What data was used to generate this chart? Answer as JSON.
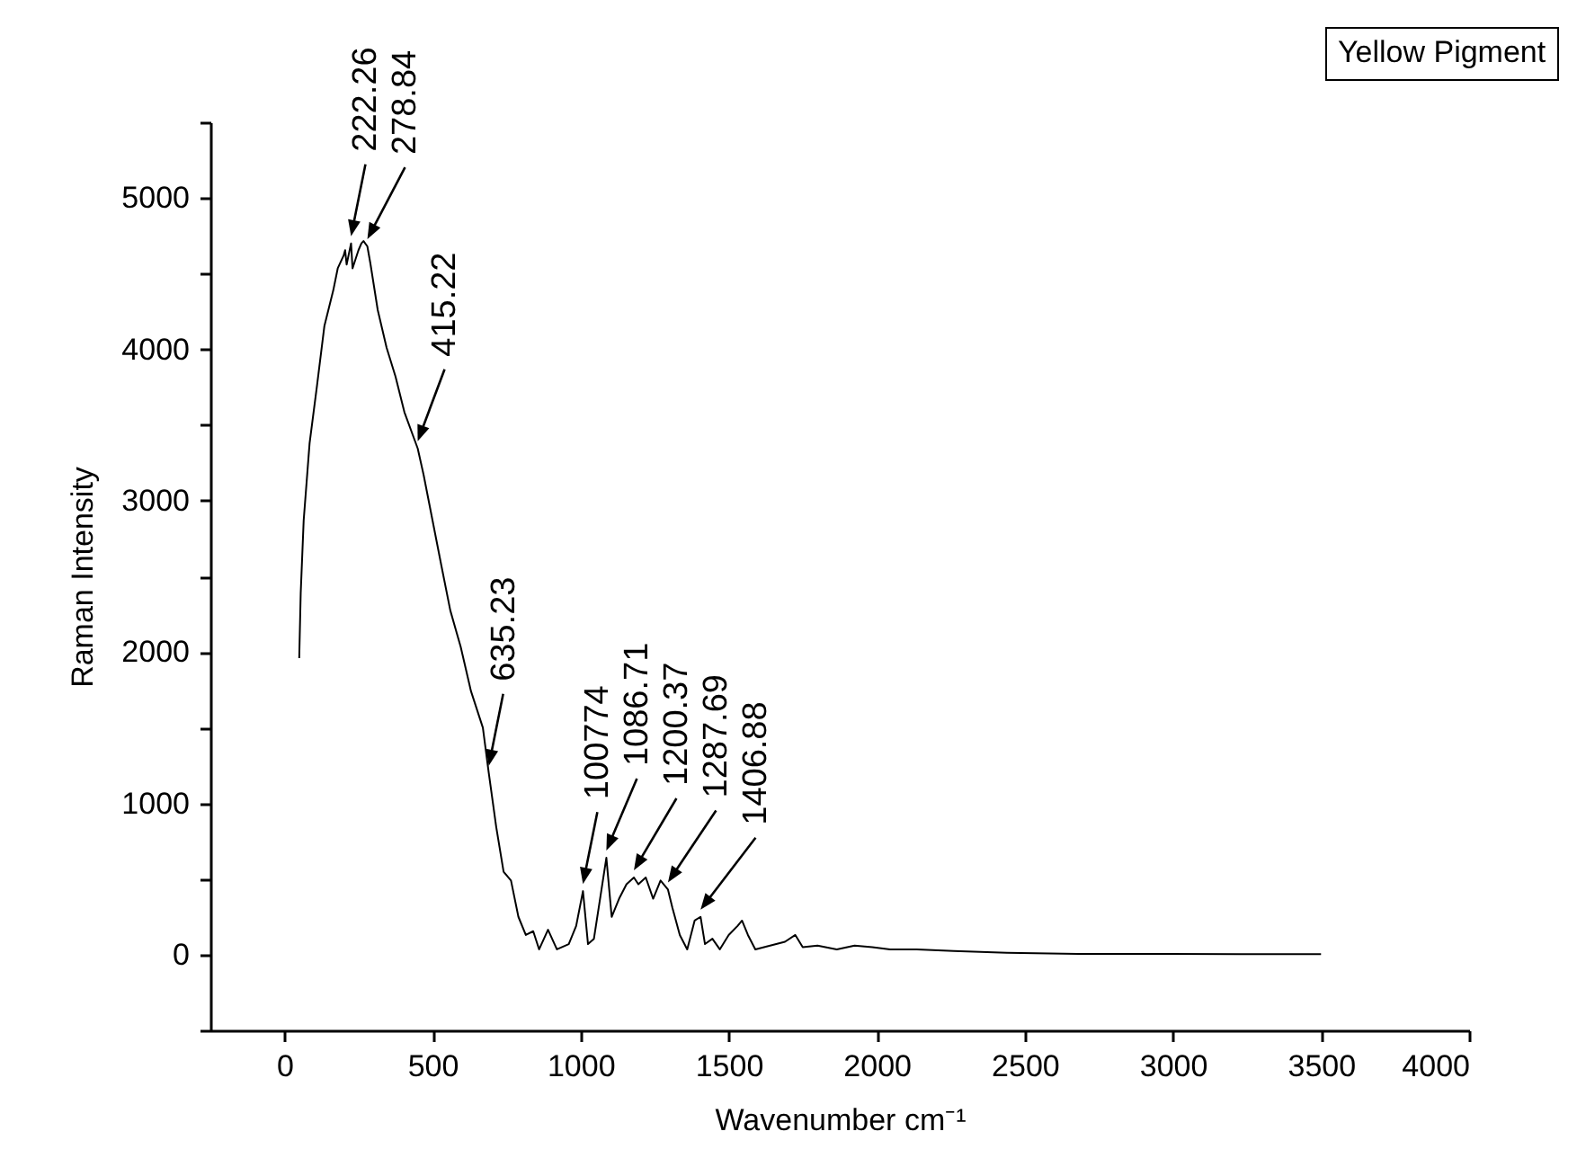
{
  "chart_data": {
    "type": "line",
    "xlabel": "Wavenumber cm⁻¹",
    "ylabel": "Raman Intensity",
    "legend": "top right",
    "xlim": [
      -250,
      4000
    ],
    "xticks": [
      0,
      500,
      1000,
      1500,
      2000,
      2500,
      3000,
      3500,
      4000
    ],
    "ylim": [
      -500,
      5500
    ],
    "yticks": [
      {
        "value": -500,
        "label": null
      },
      0,
      {
        "value": 500,
        "label": null
      },
      1000,
      {
        "value": 1500,
        "label": null
      },
      2000,
      {
        "value": 2500,
        "label": null
      },
      3000,
      {
        "value": 3500,
        "label": null
      },
      4000,
      {
        "value": 4500,
        "label": null
      },
      5000,
      {
        "value": 5500,
        "label": null
      }
    ],
    "series": [
      {
        "name": "Yellow Pigment",
        "color": "#000000",
        "x": [
          50,
          55,
          65,
          85,
          110,
          135,
          165,
          180,
          200,
          205,
          210,
          225,
          230,
          250,
          260,
          267,
          280,
          290,
          315,
          345,
          375,
          405,
          450,
          470,
          500,
          530,
          560,
          595,
          630,
          670,
          690,
          715,
          740,
          765,
          790,
          815,
          840,
          860,
          890,
          920,
          960,
          985,
          1008,
          1025,
          1045,
          1087,
          1105,
          1130,
          1155,
          1180,
          1195,
          1220,
          1245,
          1270,
          1295,
          1310,
          1335,
          1360,
          1385,
          1405,
          1420,
          1445,
          1470,
          1500,
          1530,
          1545,
          1565,
          1590,
          1640,
          1690,
          1725,
          1750,
          1800,
          1865,
          1925,
          1985,
          2045,
          2135,
          2260,
          2440,
          2680,
          2985,
          3230,
          3500
        ],
        "values": [
          1960,
          2390,
          2870,
          3380,
          3760,
          4155,
          4390,
          4535,
          4620,
          4655,
          4560,
          4700,
          4535,
          4655,
          4700,
          4715,
          4680,
          4570,
          4260,
          4010,
          3820,
          3585,
          3345,
          3170,
          2870,
          2570,
          2275,
          2035,
          1740,
          1500,
          1200,
          845,
          548,
          490,
          250,
          130,
          155,
          35,
          165,
          35,
          70,
          190,
          420,
          70,
          105,
          640,
          250,
          370,
          465,
          510,
          465,
          510,
          370,
          490,
          430,
          310,
          130,
          35,
          225,
          250,
          70,
          105,
          35,
          130,
          190,
          225,
          130,
          35,
          60,
          85,
          130,
          50,
          60,
          35,
          60,
          50,
          35,
          35,
          25,
          12,
          5,
          5,
          3,
          3
        ]
      }
    ],
    "annotations": [
      {
        "text": "222.26",
        "x": 225,
        "y": 4700
      },
      {
        "text": "278.84",
        "x": 280,
        "y": 4680
      },
      {
        "text": "415.22",
        "x": 450,
        "y": 3345
      },
      {
        "text": "635.23",
        "x": 690,
        "y": 1200
      },
      {
        "text": "100774",
        "x": 1008,
        "y": 420
      },
      {
        "text": "1086.71",
        "x": 1087,
        "y": 640
      },
      {
        "text": "1200.37",
        "x": 1180,
        "y": 510
      },
      {
        "text": "1287.69",
        "x": 1295,
        "y": 430
      },
      {
        "text": "1406.88",
        "x": 1405,
        "y": 250
      }
    ]
  }
}
